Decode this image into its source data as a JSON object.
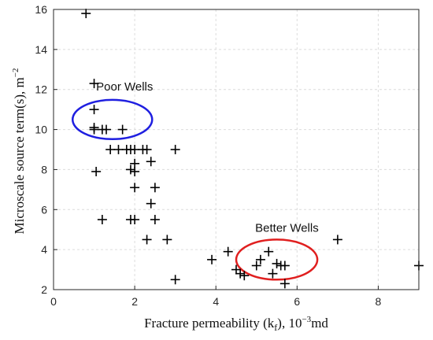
{
  "chart_data": {
    "type": "scatter",
    "title": "",
    "xlabel": "Fracture permeability (k_f), 10^-3 md",
    "ylabel": "Microscale source term(s), m^-2",
    "xlim": [
      0,
      9
    ],
    "ylim": [
      2,
      16
    ],
    "xticks": [
      0,
      2,
      4,
      6,
      8
    ],
    "yticks": [
      2,
      4,
      6,
      8,
      10,
      12,
      14,
      16
    ],
    "grid": true,
    "marker": "+",
    "marker_color": "#000000",
    "series": [
      {
        "x": [
          0.8,
          1.0,
          1.0,
          1.0,
          1.0,
          1.05,
          1.2,
          1.3,
          1.7,
          1.4,
          1.6,
          1.8,
          1.9,
          2.0,
          2.0,
          2.0,
          2.2,
          2.3,
          3.0,
          1.9,
          2.4,
          2.5,
          2.4,
          2.0,
          2.0,
          1.2,
          1.9,
          2.5,
          2.3,
          2.8,
          3.0,
          3.9,
          4.3,
          4.5,
          4.6,
          4.7,
          5.0,
          5.1,
          5.3,
          5.4,
          5.5,
          5.6,
          5.7,
          5.7,
          7.0,
          9.0
        ],
        "y": [
          15.8,
          12.3,
          11.0,
          10.0,
          10.1,
          7.9,
          10.0,
          10.0,
          10.0,
          9.0,
          9.0,
          9.0,
          9.0,
          9.0,
          8.3,
          7.9,
          9.0,
          9.0,
          9.0,
          8.0,
          8.4,
          7.1,
          6.3,
          7.1,
          5.5,
          5.5,
          5.5,
          5.5,
          4.5,
          4.5,
          2.5,
          3.5,
          3.9,
          3.0,
          2.8,
          2.7,
          3.2,
          3.5,
          3.9,
          2.8,
          3.3,
          3.2,
          2.3,
          3.2,
          4.5,
          3.2
        ]
      }
    ],
    "annotations": [
      {
        "text": "Poor Wells",
        "x": 1.05,
        "y": 11.95
      },
      {
        "text": "Better Wells",
        "x": 5.75,
        "y": 4.9
      }
    ],
    "ellipses": [
      {
        "cx": 1.45,
        "cy": 10.5,
        "rx": 0.98,
        "ry": 0.98,
        "color": "#1f1fe0"
      },
      {
        "cx": 5.5,
        "cy": 3.5,
        "rx": 1.0,
        "ry": 1.0,
        "color": "#e01f1f"
      }
    ]
  }
}
